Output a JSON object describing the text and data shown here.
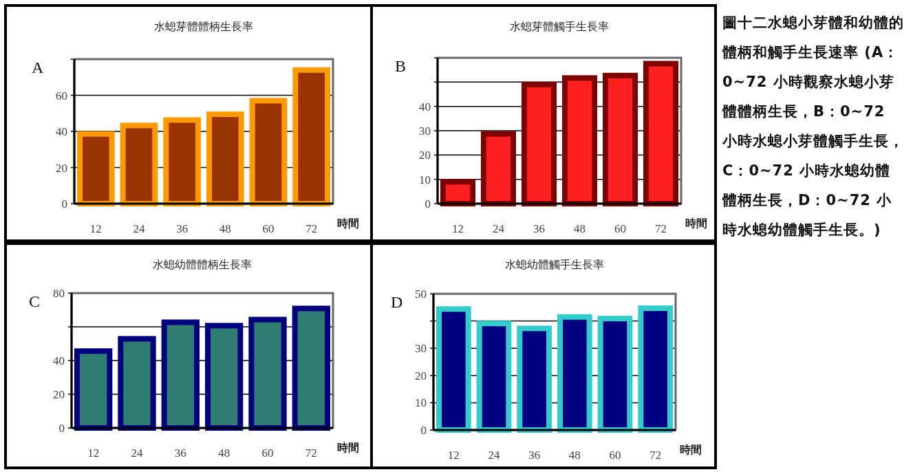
{
  "chart_data": [
    {
      "type": "bar",
      "title": "水螅芽體體柄生長率",
      "xlabel": "時間",
      "annotations": [
        "A"
      ],
      "categories": [
        "12",
        "24",
        "36",
        "48",
        "60",
        "72"
      ],
      "series": [
        {
          "color": "#993300",
          "values": [
            38.6,
            43.3,
            46.3,
            49.5,
            57,
            74
          ]
        }
      ],
      "ylim": [
        0,
        80
      ],
      "yticks": [
        0,
        20,
        40,
        60,
        {
          "value": 80,
          "label": null
        }
      ],
      "grid": "y"
    },
    {
      "type": "bar",
      "title": "水螅芽體觸手生長率",
      "xlabel": "時間",
      "annotations": [
        "B"
      ],
      "categories": [
        "12",
        "24",
        "36",
        "48",
        "60",
        "72"
      ],
      "series": [
        {
          "color": "#ff2020",
          "values": [
            9,
            28.7,
            49,
            51.7,
            52.7,
            57.6
          ]
        }
      ],
      "ylim": [
        0,
        60
      ],
      "yticks": [
        0,
        10,
        20,
        30,
        40,
        {
          "value": 50,
          "label": null
        },
        {
          "value": 60,
          "label": null
        }
      ],
      "grid": "y"
    },
    {
      "type": "bar",
      "title": "水螅幼體體柄生長率",
      "xlabel": "時間",
      "annotations": [
        "C"
      ],
      "categories": [
        "12",
        "24",
        "36",
        "48",
        "60",
        "72"
      ],
      "series": [
        {
          "color": "#2e7d70",
          "values": [
            45.6,
            52.9,
            62.7,
            60.7,
            64.3,
            70.9
          ]
        }
      ],
      "ylim": [
        0,
        80
      ],
      "yticks": [
        0,
        20,
        40,
        {
          "value": 60,
          "label": null
        },
        80
      ],
      "grid": "y"
    },
    {
      "type": "bar",
      "title": "水螅幼體觸手生長率",
      "xlabel": "時間",
      "annotations": [
        "D"
      ],
      "categories": [
        "12",
        "24",
        "36",
        "48",
        "60",
        "72"
      ],
      "series": [
        {
          "color": "#000080",
          "values": [
            44.4,
            39.1,
            37.3,
            41.5,
            40.9,
            44.7
          ]
        }
      ],
      "ylim": [
        0,
        50
      ],
      "yticks": [
        0,
        10,
        20,
        30,
        {
          "value": 40,
          "label": null
        },
        50
      ],
      "grid": "y"
    },
    {
      "type": "other",
      "annotations": [
        "圖十二水螅小芽體和幼體的體柄和觸手生長速率 (A：0~72 小時觀察水螅小芽體體柄生長，B：0~72 小時水螅小芽體觸手生長，C：0~72 小時水螅幼體體柄生長，D：0~72 小時水螅幼體觸手生長。)"
      ]
    }
  ]
}
